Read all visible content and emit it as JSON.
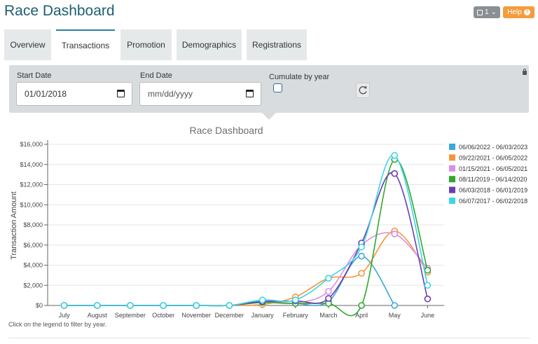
{
  "header": {
    "title": "Race Dashboard",
    "page_selector": "1",
    "help_label": "Help"
  },
  "tabs": [
    {
      "label": "Overview",
      "active": false
    },
    {
      "label": "Transactions",
      "active": true
    },
    {
      "label": "Promotion",
      "active": false
    },
    {
      "label": "Demographics",
      "active": false
    },
    {
      "label": "Registrations",
      "active": false
    }
  ],
  "filters": {
    "start_date_label": "Start Date",
    "start_date_value": "01/01/2018",
    "end_date_label": "End Date",
    "end_date_placeholder": "mm/dd/yyyy",
    "cumulate_label": "Cumulate by year",
    "cumulate_checked": false
  },
  "chart_note": "Click on the legend to filter by year.",
  "colors": {
    "title": "#1d5d73",
    "tab_active_border": "#2a7fa0",
    "help_button": "#f39c3d",
    "filter_panel": "#d9dcde"
  },
  "chart_data": {
    "type": "line",
    "title": "Race Dashboard",
    "xlabel": "",
    "ylabel": "Transaction Amount",
    "categories": [
      "July",
      "August",
      "September",
      "October",
      "November",
      "December",
      "January",
      "February",
      "March",
      "April",
      "May",
      "June"
    ],
    "y_ticks": [
      "$0",
      "$2,000",
      "$4,000",
      "$6,000",
      "$8,000",
      "$10,000",
      "$12,000",
      "$14,000",
      "$16,000"
    ],
    "ylim": [
      0,
      16000
    ],
    "grid": true,
    "legend_position": "right",
    "series": [
      {
        "name": "06/06/2022 - 06/03/2023",
        "color": "#3aa8d8",
        "values": [
          0,
          0,
          0,
          0,
          0,
          0,
          400,
          200,
          400,
          4900,
          0,
          null
        ]
      },
      {
        "name": "09/22/2021 - 06/05/2022",
        "color": "#f5953a",
        "values": [
          0,
          0,
          0,
          0,
          0,
          0,
          100,
          850,
          2700,
          3200,
          7400,
          3300
        ]
      },
      {
        "name": "01/15/2021 - 06/05/2021",
        "color": "#dc8ee4",
        "values": [
          0,
          0,
          0,
          0,
          0,
          0,
          300,
          250,
          1400,
          6000,
          7100,
          3700
        ]
      },
      {
        "name": "08/11/2019 - 06/14/2020",
        "color": "#2ea82e",
        "values": [
          0,
          0,
          0,
          0,
          0,
          0,
          300,
          200,
          200,
          0,
          14500,
          3500
        ]
      },
      {
        "name": "06/03/2018 - 06/01/2019",
        "color": "#6a3db3",
        "values": [
          0,
          0,
          0,
          0,
          0,
          0,
          400,
          450,
          700,
          6200,
          13100,
          650
        ]
      },
      {
        "name": "06/07/2017 - 06/02/2018",
        "color": "#3dd6e8",
        "values": [
          0,
          0,
          0,
          0,
          0,
          0,
          550,
          550,
          2700,
          5800,
          14900,
          2000
        ]
      }
    ]
  }
}
